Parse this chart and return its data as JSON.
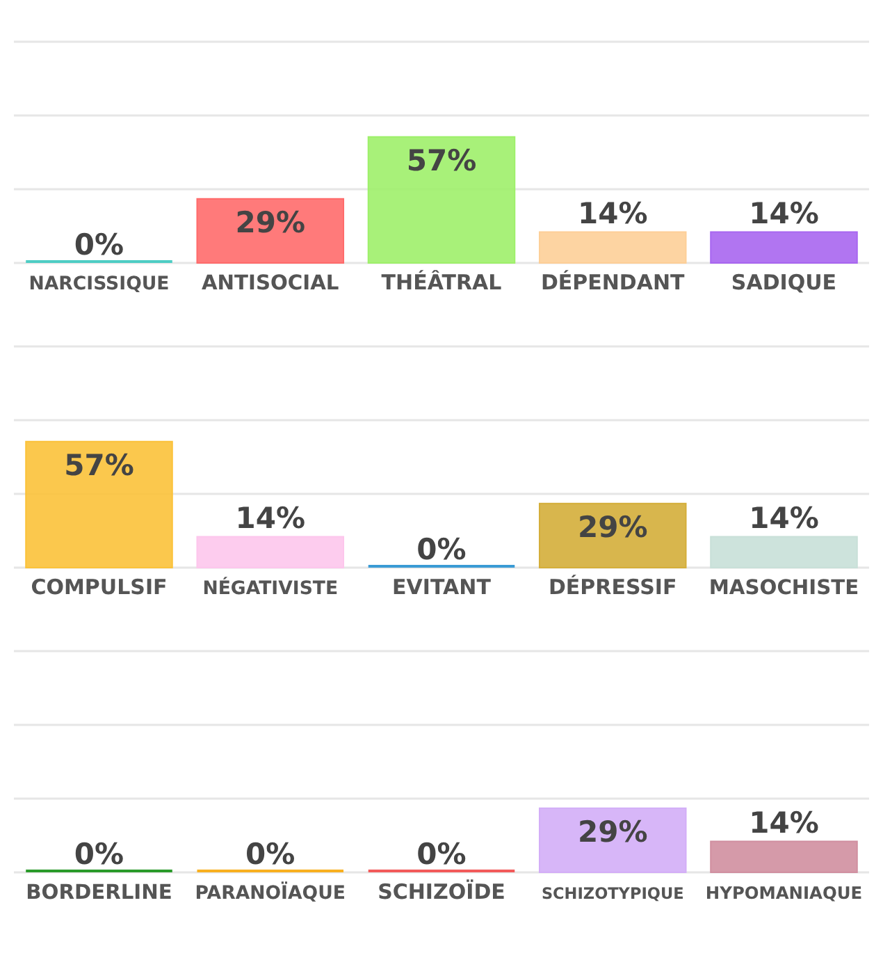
{
  "chart_data": [
    {
      "type": "bar",
      "categories": [
        "NARCISSIQUE",
        "ANTISOCIAL",
        "THÉÂTRAL",
        "DÉPENDANT",
        "SADIQUE"
      ],
      "values": [
        0,
        29,
        57,
        14,
        14
      ],
      "colors": [
        "#4ecdc4",
        "#ff6b6b",
        "#9ef06a",
        "#fdcf98",
        "#a866f0"
      ],
      "value_labels": [
        "0%",
        "29%",
        "57%",
        "14%",
        "14%"
      ],
      "ylim": [
        0,
        100
      ],
      "yticks": [
        {
          "value": 0,
          "label": null
        },
        {
          "value": 33.3,
          "label": null
        },
        {
          "value": 66.7,
          "label": null
        },
        {
          "value": 100,
          "label": null
        }
      ],
      "grid": "y",
      "tick_labels": "x"
    },
    {
      "type": "bar",
      "categories": [
        "COMPULSIF",
        "NÉGATIVISTE",
        "EVITANT",
        "DÉPRESSIF",
        "MASOCHISTE"
      ],
      "values": [
        57,
        14,
        0,
        29,
        14
      ],
      "colors": [
        "#fbc23a",
        "#fdc6ec",
        "#3a9bd5",
        "#d4ae3a",
        "#c8e0d8"
      ],
      "value_labels": [
        "57%",
        "14%",
        "0%",
        "29%",
        "14%"
      ],
      "ylim": [
        0,
        100
      ],
      "yticks": [
        {
          "value": 0,
          "label": null
        },
        {
          "value": 33.3,
          "label": null
        },
        {
          "value": 66.7,
          "label": null
        },
        {
          "value": 100,
          "label": null
        }
      ],
      "grid": "y",
      "tick_labels": "x"
    },
    {
      "type": "bar",
      "categories": [
        "BORDERLINE",
        "PARANOÏAQUE",
        "SCHIZOÏDE",
        "SCHIZOTYPIQUE",
        "HYPOMANIAQUE"
      ],
      "values": [
        0,
        0,
        0,
        29,
        14
      ],
      "colors": [
        "#2a9a2a",
        "#f8b020",
        "#f25a5a",
        "#d3aef7",
        "#d08fa0"
      ],
      "value_labels": [
        "0%",
        "0%",
        "0%",
        "29%",
        "14%"
      ],
      "ylim": [
        0,
        100
      ],
      "yticks": [
        {
          "value": 0,
          "label": null
        },
        {
          "value": 33.3,
          "label": null
        },
        {
          "value": 66.7,
          "label": null
        },
        {
          "value": 100,
          "label": null
        }
      ],
      "grid": "y",
      "tick_labels": "x"
    }
  ]
}
